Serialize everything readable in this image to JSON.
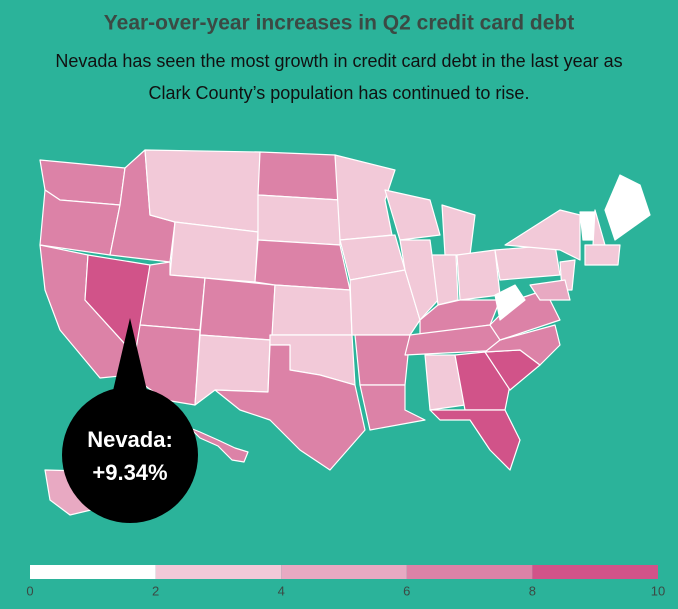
{
  "chart_data": {
    "type": "choropleth",
    "title": "Year-over-year increases in Q2 credit card debt",
    "subtitle": [
      "Nevada has seen the most growth in credit card debt in the last year as",
      "Clark County’s population has continued to rise."
    ],
    "bins": [
      0,
      2,
      4,
      6,
      8,
      10
    ],
    "colors": [
      "#ffffff",
      "#f2c9d8",
      "#e8a9c2",
      "#dc82a7",
      "#d15389"
    ],
    "region_bins": [
      3,
      3,
      3,
      4,
      3,
      1,
      1,
      3,
      3,
      3,
      1,
      3,
      1,
      3,
      1,
      1,
      3,
      1,
      1,
      1,
      3,
      3,
      1,
      1,
      1,
      1,
      1,
      3,
      3,
      1,
      4,
      4,
      4,
      3,
      3,
      0,
      1,
      1,
      0,
      1,
      0,
      1,
      1,
      2,
      2,
      3
    ],
    "annotation": {
      "label": "Nevada:",
      "value": 9.34,
      "value_label": "+9.34%"
    }
  }
}
